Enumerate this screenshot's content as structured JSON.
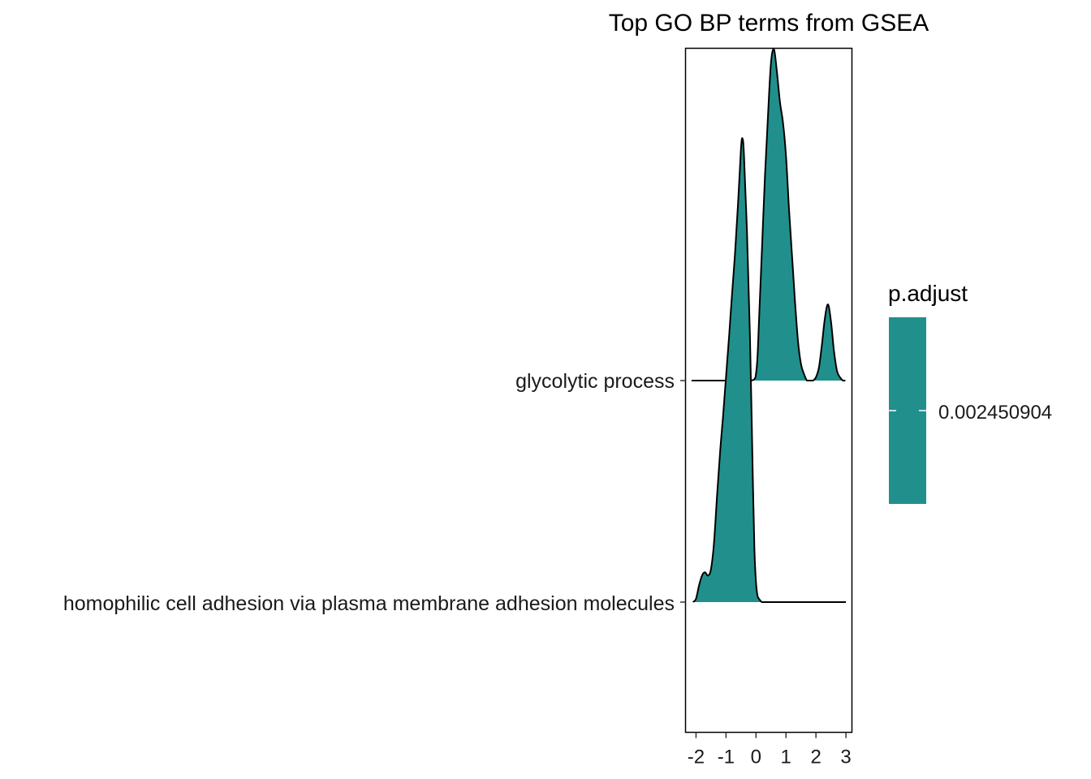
{
  "chart_data": {
    "type": "ridgeline",
    "title": "Top GO BP terms from GSEA",
    "xlabel": "",
    "ylabel": "",
    "xlim": [
      -2.35,
      3.2
    ],
    "xticks": [
      -2,
      -1,
      0,
      1,
      2,
      3
    ],
    "xtick_labels": [
      "-2",
      "-1",
      "0",
      "1",
      "2",
      "3"
    ],
    "grid": false,
    "categories": [
      "homophilic cell adhesion via plasma membrane adhesion molecules",
      "glycolytic process"
    ],
    "series": [
      {
        "category": "glycolytic process",
        "density_x": [
          -2.15,
          -1.5,
          -0.8,
          -0.2,
          -0.05,
          0.0,
          0.05,
          0.1,
          0.2,
          0.3,
          0.4,
          0.5,
          0.6,
          0.7,
          0.8,
          0.9,
          1.0,
          1.1,
          1.2,
          1.3,
          1.4,
          1.5,
          1.6,
          1.7,
          1.8,
          1.9,
          2.0,
          2.1,
          2.2,
          2.3,
          2.4,
          2.5,
          2.6,
          2.7,
          2.8,
          2.9,
          2.98
        ],
        "density_y": [
          0,
          0,
          0,
          0,
          0.005,
          0.02,
          0.07,
          0.18,
          0.4,
          0.62,
          0.8,
          0.96,
          1.0,
          0.93,
          0.84,
          0.78,
          0.68,
          0.52,
          0.38,
          0.24,
          0.12,
          0.05,
          0.02,
          0,
          0,
          0,
          0.01,
          0.04,
          0.11,
          0.19,
          0.23,
          0.18,
          0.09,
          0.03,
          0.01,
          0,
          0
        ],
        "fill": "#21908C"
      },
      {
        "category": "homophilic cell adhesion via plasma membrane adhesion molecules",
        "density_x": [
          -2.1,
          -2.0,
          -1.9,
          -1.8,
          -1.7,
          -1.6,
          -1.5,
          -1.4,
          -1.3,
          -1.2,
          -1.1,
          -1.0,
          -0.9,
          -0.8,
          -0.7,
          -0.6,
          -0.5,
          -0.45,
          -0.4,
          -0.3,
          -0.2,
          -0.1,
          -0.05,
          0.0,
          0.05,
          0.1,
          0.2,
          0.3,
          0.5,
          1.0,
          2.0,
          3.0
        ],
        "density_y": [
          0,
          0.01,
          0.05,
          0.08,
          0.09,
          0.08,
          0.1,
          0.18,
          0.32,
          0.45,
          0.56,
          0.68,
          0.8,
          0.93,
          1.05,
          1.2,
          1.37,
          1.4,
          1.35,
          1.12,
          0.8,
          0.35,
          0.15,
          0.06,
          0.02,
          0.01,
          0,
          0,
          0,
          0,
          0,
          0
        ],
        "fill": "#21908C"
      }
    ],
    "legend": {
      "title": "p.adjust",
      "label": "0.002450904",
      "color": "#21908C",
      "placement": "right"
    }
  }
}
